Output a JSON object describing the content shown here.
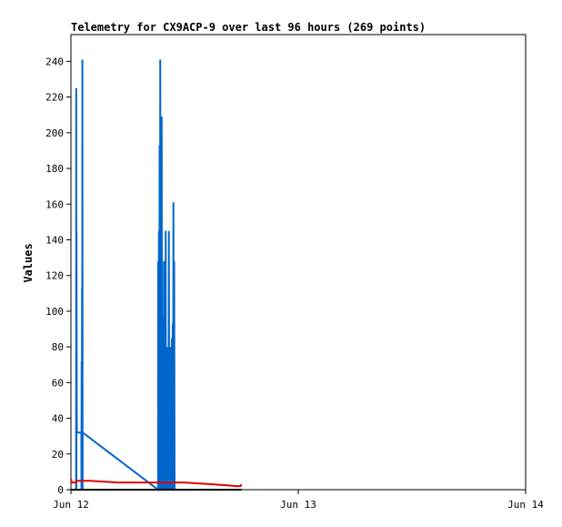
{
  "chart_data": {
    "type": "line",
    "title": "Telemetry for CX9ACP-9 over last 96 hours (269 points)",
    "xlabel": "",
    "ylabel": "Values",
    "x_tick_labels": [
      "Jun 12",
      "Jun 13",
      "Jun 14"
    ],
    "xlim_hours": [
      0,
      48
    ],
    "ylim": [
      0,
      255
    ],
    "yticks": [
      0,
      20,
      40,
      60,
      80,
      100,
      120,
      140,
      160,
      180,
      200,
      220,
      240
    ],
    "grid": false,
    "legend": "none",
    "series": [
      {
        "color": "#0066cc",
        "points": [
          [
            0.0,
            0
          ],
          [
            0.55,
            0
          ],
          [
            0.56,
            225
          ],
          [
            0.58,
            0
          ],
          [
            0.59,
            145
          ],
          [
            0.61,
            48
          ],
          [
            0.63,
            32
          ],
          [
            1.1,
            32
          ],
          [
            1.11,
            0
          ],
          [
            1.13,
            72
          ],
          [
            1.15,
            0
          ],
          [
            1.17,
            113
          ],
          [
            1.19,
            0
          ],
          [
            1.21,
            241
          ],
          [
            1.23,
            0
          ],
          [
            1.24,
            32
          ],
          [
            9.2,
            0
          ],
          [
            9.21,
            128
          ],
          [
            9.25,
            0
          ],
          [
            9.29,
            145
          ],
          [
            9.33,
            0
          ],
          [
            9.36,
            193
          ],
          [
            9.4,
            0
          ],
          [
            9.43,
            241
          ],
          [
            9.47,
            0
          ],
          [
            9.5,
            193
          ],
          [
            9.54,
            0
          ],
          [
            9.58,
            209
          ],
          [
            9.62,
            0
          ],
          [
            9.66,
            97
          ],
          [
            9.7,
            0
          ],
          [
            9.74,
            48
          ],
          [
            9.78,
            0
          ],
          [
            9.82,
            128
          ],
          [
            9.86,
            0
          ],
          [
            9.96,
            0
          ],
          [
            10.0,
            145
          ],
          [
            10.04,
            0
          ],
          [
            10.16,
            0
          ],
          [
            10.2,
            80
          ],
          [
            10.24,
            0
          ],
          [
            10.3,
            0
          ],
          [
            10.34,
            145
          ],
          [
            10.38,
            0
          ],
          [
            10.44,
            0
          ],
          [
            10.48,
            80
          ],
          [
            10.52,
            0
          ],
          [
            10.58,
            80
          ],
          [
            10.62,
            0
          ],
          [
            10.66,
            85
          ],
          [
            10.7,
            0
          ],
          [
            10.74,
            93
          ],
          [
            10.78,
            0
          ],
          [
            10.82,
            161
          ],
          [
            10.86,
            0
          ],
          [
            10.9,
            128
          ],
          [
            10.94,
            0
          ],
          [
            18.0,
            0
          ]
        ]
      },
      {
        "color": "#e00000",
        "points": [
          [
            0.0,
            6
          ],
          [
            0.1,
            4
          ],
          [
            0.3,
            4
          ],
          [
            0.5,
            4
          ],
          [
            0.55,
            5
          ],
          [
            2.0,
            5
          ],
          [
            5.0,
            4
          ],
          [
            10.0,
            4
          ],
          [
            12.0,
            4
          ],
          [
            15.0,
            3
          ],
          [
            17.5,
            2
          ],
          [
            17.9,
            2
          ],
          [
            18.0,
            3
          ]
        ]
      },
      {
        "color": "#000000",
        "points": [
          [
            0.0,
            0
          ],
          [
            18.0,
            0
          ]
        ]
      }
    ]
  }
}
